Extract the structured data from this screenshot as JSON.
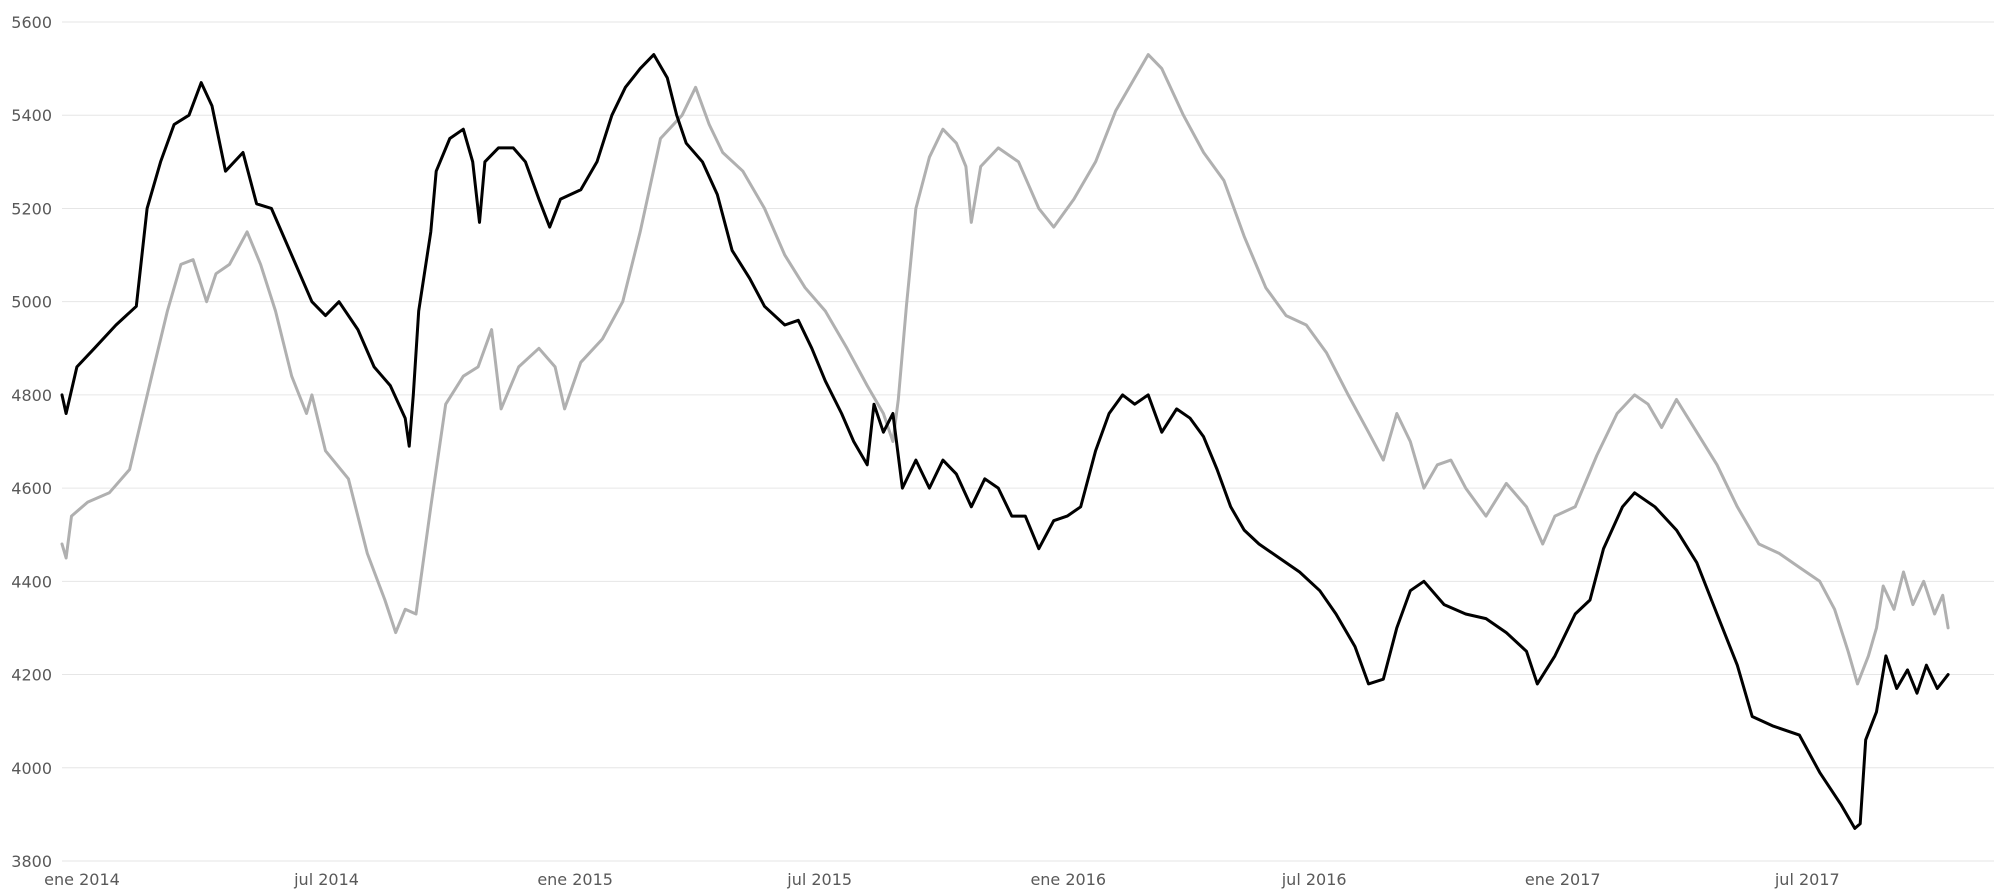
{
  "chart_data": {
    "type": "line",
    "title": "",
    "xlabel": "",
    "ylabel": "",
    "ylim": [
      3800,
      5600
    ],
    "xlim": [
      "2014-01-01",
      "2017-12-01"
    ],
    "grid": true,
    "legend": "none",
    "y_ticks": [
      3800,
      4000,
      4200,
      4400,
      4600,
      4800,
      5000,
      5200,
      5400,
      5600
    ],
    "x_ticks": [
      {
        "date": "2014-01-01",
        "label": "ene 2014"
      },
      {
        "date": "2014-07-01",
        "label": "jul 2014"
      },
      {
        "date": "2015-01-01",
        "label": "ene 2015"
      },
      {
        "date": "2015-07-01",
        "label": "jul 2015"
      },
      {
        "date": "2016-01-01",
        "label": "ene 2016"
      },
      {
        "date": "2016-07-01",
        "label": "jul 2016"
      },
      {
        "date": "2017-01-01",
        "label": "ene 2017"
      },
      {
        "date": "2017-07-01",
        "label": "jul 2017"
      }
    ],
    "series": [
      {
        "color": "#000000",
        "points": [
          [
            "2014-01-01",
            4800
          ],
          [
            "2014-01-04",
            4760
          ],
          [
            "2014-01-12",
            4860
          ],
          [
            "2014-01-25",
            4900
          ],
          [
            "2014-02-10",
            4950
          ],
          [
            "2014-02-25",
            4990
          ],
          [
            "2014-03-05",
            5200
          ],
          [
            "2014-03-15",
            5300
          ],
          [
            "2014-03-25",
            5380
          ],
          [
            "2014-04-05",
            5400
          ],
          [
            "2014-04-14",
            5470
          ],
          [
            "2014-04-22",
            5420
          ],
          [
            "2014-05-02",
            5280
          ],
          [
            "2014-05-15",
            5320
          ],
          [
            "2014-05-25",
            5210
          ],
          [
            "2014-06-05",
            5200
          ],
          [
            "2014-06-20",
            5100
          ],
          [
            "2014-07-05",
            5000
          ],
          [
            "2014-07-15",
            4970
          ],
          [
            "2014-07-25",
            5000
          ],
          [
            "2014-08-08",
            4940
          ],
          [
            "2014-08-20",
            4860
          ],
          [
            "2014-09-01",
            4820
          ],
          [
            "2014-09-12",
            4750
          ],
          [
            "2014-09-15",
            4690
          ],
          [
            "2014-09-18",
            4800
          ],
          [
            "2014-09-22",
            4980
          ],
          [
            "2014-10-01",
            5150
          ],
          [
            "2014-10-05",
            5280
          ],
          [
            "2014-10-15",
            5350
          ],
          [
            "2014-10-25",
            5370
          ],
          [
            "2014-11-01",
            5300
          ],
          [
            "2014-11-06",
            5170
          ],
          [
            "2014-11-10",
            5300
          ],
          [
            "2014-11-20",
            5330
          ],
          [
            "2014-12-01",
            5330
          ],
          [
            "2014-12-10",
            5300
          ],
          [
            "2014-12-20",
            5220
          ],
          [
            "2014-12-28",
            5160
          ],
          [
            "2015-01-05",
            5220
          ],
          [
            "2015-01-20",
            5240
          ],
          [
            "2015-02-01",
            5300
          ],
          [
            "2015-02-12",
            5400
          ],
          [
            "2015-02-22",
            5460
          ],
          [
            "2015-03-05",
            5500
          ],
          [
            "2015-03-15",
            5530
          ],
          [
            "2015-03-25",
            5480
          ],
          [
            "2015-04-01",
            5400
          ],
          [
            "2015-04-08",
            5340
          ],
          [
            "2015-04-20",
            5300
          ],
          [
            "2015-05-01",
            5230
          ],
          [
            "2015-05-12",
            5110
          ],
          [
            "2015-05-25",
            5050
          ],
          [
            "2015-06-05",
            4990
          ],
          [
            "2015-06-20",
            4950
          ],
          [
            "2015-06-30",
            4960
          ],
          [
            "2015-07-10",
            4900
          ],
          [
            "2015-07-20",
            4830
          ],
          [
            "2015-08-01",
            4760
          ],
          [
            "2015-08-10",
            4700
          ],
          [
            "2015-08-20",
            4650
          ],
          [
            "2015-08-25",
            4780
          ],
          [
            "2015-09-01",
            4720
          ],
          [
            "2015-09-08",
            4760
          ],
          [
            "2015-09-15",
            4600
          ],
          [
            "2015-09-25",
            4660
          ],
          [
            "2015-10-05",
            4600
          ],
          [
            "2015-10-15",
            4660
          ],
          [
            "2015-10-25",
            4630
          ],
          [
            "2015-11-05",
            4560
          ],
          [
            "2015-11-15",
            4620
          ],
          [
            "2015-11-25",
            4600
          ],
          [
            "2015-12-05",
            4540
          ],
          [
            "2015-12-15",
            4540
          ],
          [
            "2015-12-25",
            4470
          ],
          [
            "2016-01-05",
            4530
          ],
          [
            "2016-01-15",
            4540
          ],
          [
            "2016-01-25",
            4560
          ],
          [
            "2016-02-05",
            4680
          ],
          [
            "2016-02-15",
            4760
          ],
          [
            "2016-02-25",
            4800
          ],
          [
            "2016-03-05",
            4780
          ],
          [
            "2016-03-15",
            4800
          ],
          [
            "2016-03-25",
            4720
          ],
          [
            "2016-04-05",
            4770
          ],
          [
            "2016-04-15",
            4750
          ],
          [
            "2016-04-25",
            4710
          ],
          [
            "2016-05-05",
            4640
          ],
          [
            "2016-05-15",
            4560
          ],
          [
            "2016-05-25",
            4510
          ],
          [
            "2016-06-05",
            4480
          ],
          [
            "2016-06-20",
            4450
          ],
          [
            "2016-07-05",
            4420
          ],
          [
            "2016-07-20",
            4380
          ],
          [
            "2016-08-01",
            4330
          ],
          [
            "2016-08-15",
            4260
          ],
          [
            "2016-08-25",
            4180
          ],
          [
            "2016-09-05",
            4190
          ],
          [
            "2016-09-15",
            4300
          ],
          [
            "2016-09-25",
            4380
          ],
          [
            "2016-10-05",
            4400
          ],
          [
            "2016-10-20",
            4350
          ],
          [
            "2016-11-05",
            4330
          ],
          [
            "2016-11-20",
            4320
          ],
          [
            "2016-12-05",
            4290
          ],
          [
            "2016-12-20",
            4250
          ],
          [
            "2016-12-28",
            4180
          ],
          [
            "2017-01-10",
            4240
          ],
          [
            "2017-01-25",
            4330
          ],
          [
            "2017-02-05",
            4360
          ],
          [
            "2017-02-15",
            4470
          ],
          [
            "2017-03-01",
            4560
          ],
          [
            "2017-03-10",
            4590
          ],
          [
            "2017-03-25",
            4560
          ],
          [
            "2017-04-10",
            4510
          ],
          [
            "2017-04-25",
            4440
          ],
          [
            "2017-05-10",
            4330
          ],
          [
            "2017-05-25",
            4220
          ],
          [
            "2017-06-05",
            4110
          ],
          [
            "2017-06-20",
            4090
          ],
          [
            "2017-07-10",
            4070
          ],
          [
            "2017-07-25",
            3990
          ],
          [
            "2017-08-10",
            3920
          ],
          [
            "2017-08-20",
            3870
          ],
          [
            "2017-08-24",
            3880
          ],
          [
            "2017-08-28",
            4060
          ],
          [
            "2017-09-05",
            4120
          ],
          [
            "2017-09-12",
            4240
          ],
          [
            "2017-09-20",
            4170
          ],
          [
            "2017-09-28",
            4210
          ],
          [
            "2017-10-05",
            4160
          ],
          [
            "2017-10-12",
            4220
          ],
          [
            "2017-10-20",
            4170
          ],
          [
            "2017-10-28",
            4200
          ]
        ]
      },
      {
        "color": "#b0b0b0",
        "points": [
          [
            "2014-01-01",
            4480
          ],
          [
            "2014-01-04",
            4450
          ],
          [
            "2014-01-08",
            4540
          ],
          [
            "2014-01-20",
            4570
          ],
          [
            "2014-02-05",
            4590
          ],
          [
            "2014-02-20",
            4640
          ],
          [
            "2014-03-01",
            4750
          ],
          [
            "2014-03-10",
            4860
          ],
          [
            "2014-03-20",
            4980
          ],
          [
            "2014-03-30",
            5080
          ],
          [
            "2014-04-08",
            5090
          ],
          [
            "2014-04-18",
            5000
          ],
          [
            "2014-04-25",
            5060
          ],
          [
            "2014-05-05",
            5080
          ],
          [
            "2014-05-18",
            5150
          ],
          [
            "2014-05-28",
            5080
          ],
          [
            "2014-06-08",
            4980
          ],
          [
            "2014-06-20",
            4840
          ],
          [
            "2014-07-01",
            4760
          ],
          [
            "2014-07-05",
            4800
          ],
          [
            "2014-07-15",
            4680
          ],
          [
            "2014-08-01",
            4620
          ],
          [
            "2014-08-15",
            4460
          ],
          [
            "2014-08-28",
            4360
          ],
          [
            "2014-09-05",
            4290
          ],
          [
            "2014-09-12",
            4340
          ],
          [
            "2014-09-20",
            4330
          ],
          [
            "2014-10-01",
            4560
          ],
          [
            "2014-10-12",
            4780
          ],
          [
            "2014-10-25",
            4840
          ],
          [
            "2014-11-05",
            4860
          ],
          [
            "2014-11-15",
            4940
          ],
          [
            "2014-11-22",
            4770
          ],
          [
            "2014-12-05",
            4860
          ],
          [
            "2014-12-20",
            4900
          ],
          [
            "2015-01-01",
            4860
          ],
          [
            "2015-01-08",
            4770
          ],
          [
            "2015-01-20",
            4870
          ],
          [
            "2015-02-05",
            4920
          ],
          [
            "2015-02-20",
            5000
          ],
          [
            "2015-03-05",
            5150
          ],
          [
            "2015-03-20",
            5350
          ],
          [
            "2015-04-05",
            5400
          ],
          [
            "2015-04-15",
            5460
          ],
          [
            "2015-04-25",
            5380
          ],
          [
            "2015-05-05",
            5320
          ],
          [
            "2015-05-20",
            5280
          ],
          [
            "2015-06-05",
            5200
          ],
          [
            "2015-06-20",
            5100
          ],
          [
            "2015-07-05",
            5030
          ],
          [
            "2015-07-20",
            4980
          ],
          [
            "2015-08-05",
            4900
          ],
          [
            "2015-08-20",
            4820
          ],
          [
            "2015-09-01",
            4760
          ],
          [
            "2015-09-08",
            4700
          ],
          [
            "2015-09-12",
            4790
          ],
          [
            "2015-09-18",
            4990
          ],
          [
            "2015-09-25",
            5200
          ],
          [
            "2015-10-05",
            5310
          ],
          [
            "2015-10-15",
            5370
          ],
          [
            "2015-10-25",
            5340
          ],
          [
            "2015-11-01",
            5290
          ],
          [
            "2015-11-05",
            5170
          ],
          [
            "2015-11-12",
            5290
          ],
          [
            "2015-11-25",
            5330
          ],
          [
            "2015-12-10",
            5300
          ],
          [
            "2015-12-25",
            5200
          ],
          [
            "2016-01-05",
            5160
          ],
          [
            "2016-01-20",
            5220
          ],
          [
            "2016-02-05",
            5300
          ],
          [
            "2016-02-20",
            5410
          ],
          [
            "2016-03-05",
            5480
          ],
          [
            "2016-03-15",
            5530
          ],
          [
            "2016-03-25",
            5500
          ],
          [
            "2016-04-10",
            5400
          ],
          [
            "2016-04-25",
            5320
          ],
          [
            "2016-05-10",
            5260
          ],
          [
            "2016-05-25",
            5140
          ],
          [
            "2016-06-10",
            5030
          ],
          [
            "2016-06-25",
            4970
          ],
          [
            "2016-07-10",
            4950
          ],
          [
            "2016-07-25",
            4890
          ],
          [
            "2016-08-10",
            4800
          ],
          [
            "2016-08-25",
            4720
          ],
          [
            "2016-09-05",
            4660
          ],
          [
            "2016-09-15",
            4760
          ],
          [
            "2016-09-25",
            4700
          ],
          [
            "2016-10-05",
            4600
          ],
          [
            "2016-10-15",
            4650
          ],
          [
            "2016-10-25",
            4660
          ],
          [
            "2016-11-05",
            4600
          ],
          [
            "2016-11-20",
            4540
          ],
          [
            "2016-12-05",
            4610
          ],
          [
            "2016-12-20",
            4560
          ],
          [
            "2017-01-01",
            4480
          ],
          [
            "2017-01-10",
            4540
          ],
          [
            "2017-01-25",
            4560
          ],
          [
            "2017-02-10",
            4670
          ],
          [
            "2017-02-25",
            4760
          ],
          [
            "2017-03-10",
            4800
          ],
          [
            "2017-03-20",
            4780
          ],
          [
            "2017-03-30",
            4730
          ],
          [
            "2017-04-10",
            4790
          ],
          [
            "2017-04-25",
            4720
          ],
          [
            "2017-05-10",
            4650
          ],
          [
            "2017-05-25",
            4560
          ],
          [
            "2017-06-10",
            4480
          ],
          [
            "2017-06-25",
            4460
          ],
          [
            "2017-07-10",
            4430
          ],
          [
            "2017-07-25",
            4400
          ],
          [
            "2017-08-05",
            4340
          ],
          [
            "2017-08-15",
            4250
          ],
          [
            "2017-08-22",
            4180
          ],
          [
            "2017-08-30",
            4240
          ],
          [
            "2017-09-05",
            4300
          ],
          [
            "2017-09-10",
            4390
          ],
          [
            "2017-09-18",
            4340
          ],
          [
            "2017-09-25",
            4420
          ],
          [
            "2017-10-02",
            4350
          ],
          [
            "2017-10-10",
            4400
          ],
          [
            "2017-10-18",
            4330
          ],
          [
            "2017-10-24",
            4370
          ],
          [
            "2017-10-28",
            4300
          ]
        ]
      }
    ]
  }
}
